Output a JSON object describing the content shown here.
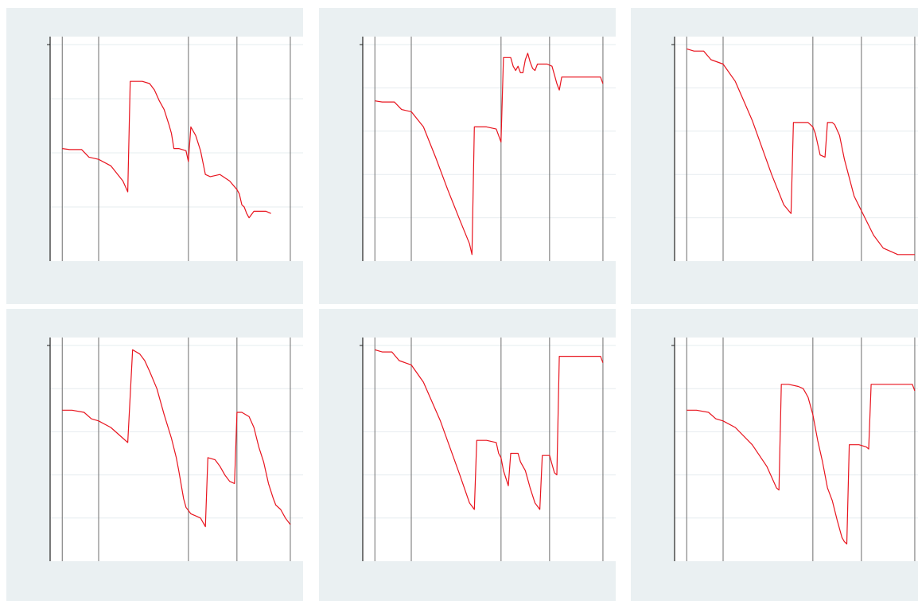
{
  "style": {
    "panel_bg": "#eaf0f2",
    "plot_bg": "#ffffff",
    "line_color": "#e8141e",
    "vline_color": "#6e6e6e"
  },
  "chart_data": [
    {
      "type": "line",
      "title": "",
      "xlabel": "",
      "ylabel": "",
      "xlim": [
        0,
        100
      ],
      "ylim": [
        0,
        100
      ],
      "grid": "horizontal",
      "hgrid": [
        25,
        50,
        75,
        100
      ],
      "vlines": [
        5,
        20,
        57,
        77,
        99
      ],
      "series": [
        {
          "values": [
            [
              5,
              52
            ],
            [
              8,
              51.5
            ],
            [
              13,
              51.5
            ],
            [
              16,
              48
            ],
            [
              20,
              47
            ],
            [
              25,
              44
            ],
            [
              30,
              37
            ],
            [
              32,
              32
            ],
            [
              33,
              83
            ],
            [
              38,
              83
            ],
            [
              41,
              82
            ],
            [
              43,
              79
            ],
            [
              45,
              74
            ],
            [
              47,
              70
            ],
            [
              49,
              63
            ],
            [
              50,
              59
            ],
            [
              51,
              52
            ],
            [
              53,
              52
            ],
            [
              56,
              51
            ],
            [
              57,
              46
            ],
            [
              58,
              62
            ],
            [
              60,
              58
            ],
            [
              62,
              51
            ],
            [
              64,
              40
            ],
            [
              66,
              39
            ],
            [
              70,
              40
            ],
            [
              74,
              37
            ],
            [
              77,
              33
            ],
            [
              78,
              31
            ],
            [
              79,
              26
            ],
            [
              80,
              25
            ],
            [
              81,
              22
            ],
            [
              82,
              20
            ],
            [
              84,
              23
            ],
            [
              87,
              23
            ],
            [
              89,
              23
            ],
            [
              91,
              22
            ]
          ]
        }
      ]
    },
    {
      "type": "line",
      "title": "",
      "xlabel": "",
      "ylabel": "",
      "xlim": [
        0,
        100
      ],
      "ylim": [
        0,
        100
      ],
      "grid": "horizontal",
      "hgrid": [
        20,
        40,
        60,
        80,
        100
      ],
      "vlines": [
        5,
        20,
        57,
        77,
        99
      ],
      "series": [
        {
          "values": [
            [
              5,
              74
            ],
            [
              8,
              73.5
            ],
            [
              13,
              73.5
            ],
            [
              16,
              70
            ],
            [
              20,
              69
            ],
            [
              25,
              62
            ],
            [
              30,
              48
            ],
            [
              35,
              33
            ],
            [
              40,
              19
            ],
            [
              44,
              8
            ],
            [
              45,
              3
            ],
            [
              46,
              62
            ],
            [
              51,
              62
            ],
            [
              55,
              61
            ],
            [
              56,
              58
            ],
            [
              57,
              55
            ],
            [
              58,
              94
            ],
            [
              61,
              94
            ],
            [
              62,
              90
            ],
            [
              63,
              88
            ],
            [
              64,
              90
            ],
            [
              65,
              87
            ],
            [
              66,
              87
            ],
            [
              67,
              93
            ],
            [
              68,
              96
            ],
            [
              69,
              92
            ],
            [
              70,
              89
            ],
            [
              71,
              88
            ],
            [
              72,
              91
            ],
            [
              76,
              91
            ],
            [
              78,
              90
            ],
            [
              79,
              86
            ],
            [
              80,
              82
            ],
            [
              81,
              79
            ],
            [
              82,
              85
            ],
            [
              85,
              85
            ],
            [
              90,
              85
            ],
            [
              94,
              85
            ],
            [
              98,
              85
            ],
            [
              99,
              82
            ]
          ]
        }
      ]
    },
    {
      "type": "line",
      "title": "",
      "xlabel": "",
      "ylabel": "",
      "xlim": [
        0,
        100
      ],
      "ylim": [
        0,
        100
      ],
      "grid": "horizontal",
      "hgrid": [
        20,
        40,
        60,
        80,
        100
      ],
      "vlines": [
        5,
        20,
        57,
        77,
        99
      ],
      "series": [
        {
          "values": [
            [
              5,
              98
            ],
            [
              8,
              97
            ],
            [
              12,
              97
            ],
            [
              15,
              93
            ],
            [
              20,
              91
            ],
            [
              25,
              83
            ],
            [
              32,
              65
            ],
            [
              40,
              40
            ],
            [
              45,
              26
            ],
            [
              48,
              22
            ],
            [
              49,
              64
            ],
            [
              51,
              64
            ],
            [
              55,
              64
            ],
            [
              57,
              62
            ],
            [
              58,
              59
            ],
            [
              60,
              49
            ],
            [
              62,
              48
            ],
            [
              63,
              64
            ],
            [
              65,
              64
            ],
            [
              66,
              63
            ],
            [
              68,
              58
            ],
            [
              70,
              47
            ],
            [
              74,
              30
            ],
            [
              78,
              21
            ],
            [
              82,
              12
            ],
            [
              86,
              6
            ],
            [
              90,
              4
            ],
            [
              92,
              3
            ],
            [
              96,
              3
            ],
            [
              98,
              3
            ],
            [
              99,
              3
            ]
          ]
        }
      ]
    },
    {
      "type": "line",
      "title": "",
      "xlabel": "",
      "ylabel": "",
      "xlim": [
        0,
        100
      ],
      "ylim": [
        0,
        100
      ],
      "grid": "horizontal",
      "hgrid": [
        20,
        40,
        60,
        80,
        100
      ],
      "vlines": [
        5,
        20,
        57,
        77,
        99
      ],
      "series": [
        {
          "values": [
            [
              5,
              70
            ],
            [
              9,
              70
            ],
            [
              14,
              69
            ],
            [
              17,
              66
            ],
            [
              20,
              65
            ],
            [
              25,
              62
            ],
            [
              30,
              57
            ],
            [
              32,
              55
            ],
            [
              34,
              98
            ],
            [
              37,
              96
            ],
            [
              39,
              93
            ],
            [
              41,
              88
            ],
            [
              44,
              80
            ],
            [
              47,
              68
            ],
            [
              50,
              57
            ],
            [
              52,
              48
            ],
            [
              53,
              42
            ],
            [
              55,
              29
            ],
            [
              56,
              25
            ],
            [
              58,
              22
            ],
            [
              60,
              21
            ],
            [
              62,
              20
            ],
            [
              64,
              16
            ],
            [
              65,
              48
            ],
            [
              68,
              47
            ],
            [
              70,
              44
            ],
            [
              72,
              40
            ],
            [
              74,
              37
            ],
            [
              76,
              36
            ],
            [
              77,
              69
            ],
            [
              79,
              69
            ],
            [
              82,
              67
            ],
            [
              84,
              62
            ],
            [
              86,
              53
            ],
            [
              88,
              46
            ],
            [
              90,
              36
            ],
            [
              92,
              29
            ],
            [
              93,
              26
            ],
            [
              95,
              24
            ],
            [
              97,
              20
            ],
            [
              99,
              17
            ]
          ]
        }
      ]
    },
    {
      "type": "line",
      "title": "",
      "xlabel": "",
      "ylabel": "",
      "xlim": [
        0,
        100
      ],
      "ylim": [
        0,
        100
      ],
      "grid": "horizontal",
      "hgrid": [
        20,
        40,
        60,
        80,
        100
      ],
      "vlines": [
        5,
        20,
        57,
        77,
        99
      ],
      "series": [
        {
          "values": [
            [
              5,
              98
            ],
            [
              8,
              97
            ],
            [
              12,
              97
            ],
            [
              15,
              93
            ],
            [
              20,
              91
            ],
            [
              25,
              83
            ],
            [
              32,
              65
            ],
            [
              40,
              40
            ],
            [
              44,
              27
            ],
            [
              46,
              24
            ],
            [
              47,
              56
            ],
            [
              51,
              56
            ],
            [
              55,
              55
            ],
            [
              56,
              50
            ],
            [
              57,
              48
            ],
            [
              58,
              42
            ],
            [
              60,
              35
            ],
            [
              61,
              50
            ],
            [
              64,
              50
            ],
            [
              65,
              46
            ],
            [
              67,
              42
            ],
            [
              69,
              34
            ],
            [
              71,
              27
            ],
            [
              73,
              24
            ],
            [
              74,
              49
            ],
            [
              77,
              49
            ],
            [
              78,
              45
            ],
            [
              79,
              41
            ],
            [
              80,
              40
            ],
            [
              81,
              95
            ],
            [
              84,
              95
            ],
            [
              88,
              95
            ],
            [
              93,
              95
            ],
            [
              98,
              95
            ],
            [
              99,
              92
            ]
          ]
        }
      ]
    },
    {
      "type": "line",
      "title": "",
      "xlabel": "",
      "ylabel": "",
      "xlim": [
        0,
        100
      ],
      "ylim": [
        0,
        100
      ],
      "grid": "horizontal",
      "hgrid": [
        20,
        40,
        60,
        80,
        100
      ],
      "vlines": [
        5,
        20,
        57,
        77,
        99
      ],
      "series": [
        {
          "values": [
            [
              5,
              70
            ],
            [
              9,
              70
            ],
            [
              14,
              69
            ],
            [
              17,
              66
            ],
            [
              20,
              65
            ],
            [
              25,
              62
            ],
            [
              32,
              54
            ],
            [
              38,
              44
            ],
            [
              42,
              34
            ],
            [
              43,
              33
            ],
            [
              44,
              82
            ],
            [
              47,
              82
            ],
            [
              51,
              81
            ],
            [
              53,
              80
            ],
            [
              55,
              76
            ],
            [
              57,
              68
            ],
            [
              59,
              56
            ],
            [
              61,
              46
            ],
            [
              63,
              34
            ],
            [
              65,
              28
            ],
            [
              67,
              19
            ],
            [
              69,
              11
            ],
            [
              70,
              9
            ],
            [
              71,
              8
            ],
            [
              72,
              54
            ],
            [
              76,
              54
            ],
            [
              79,
              53
            ],
            [
              80,
              52
            ],
            [
              81,
              82
            ],
            [
              85,
              82
            ],
            [
              90,
              82
            ],
            [
              94,
              82
            ],
            [
              98,
              82
            ],
            [
              99,
              79
            ]
          ]
        }
      ]
    }
  ]
}
